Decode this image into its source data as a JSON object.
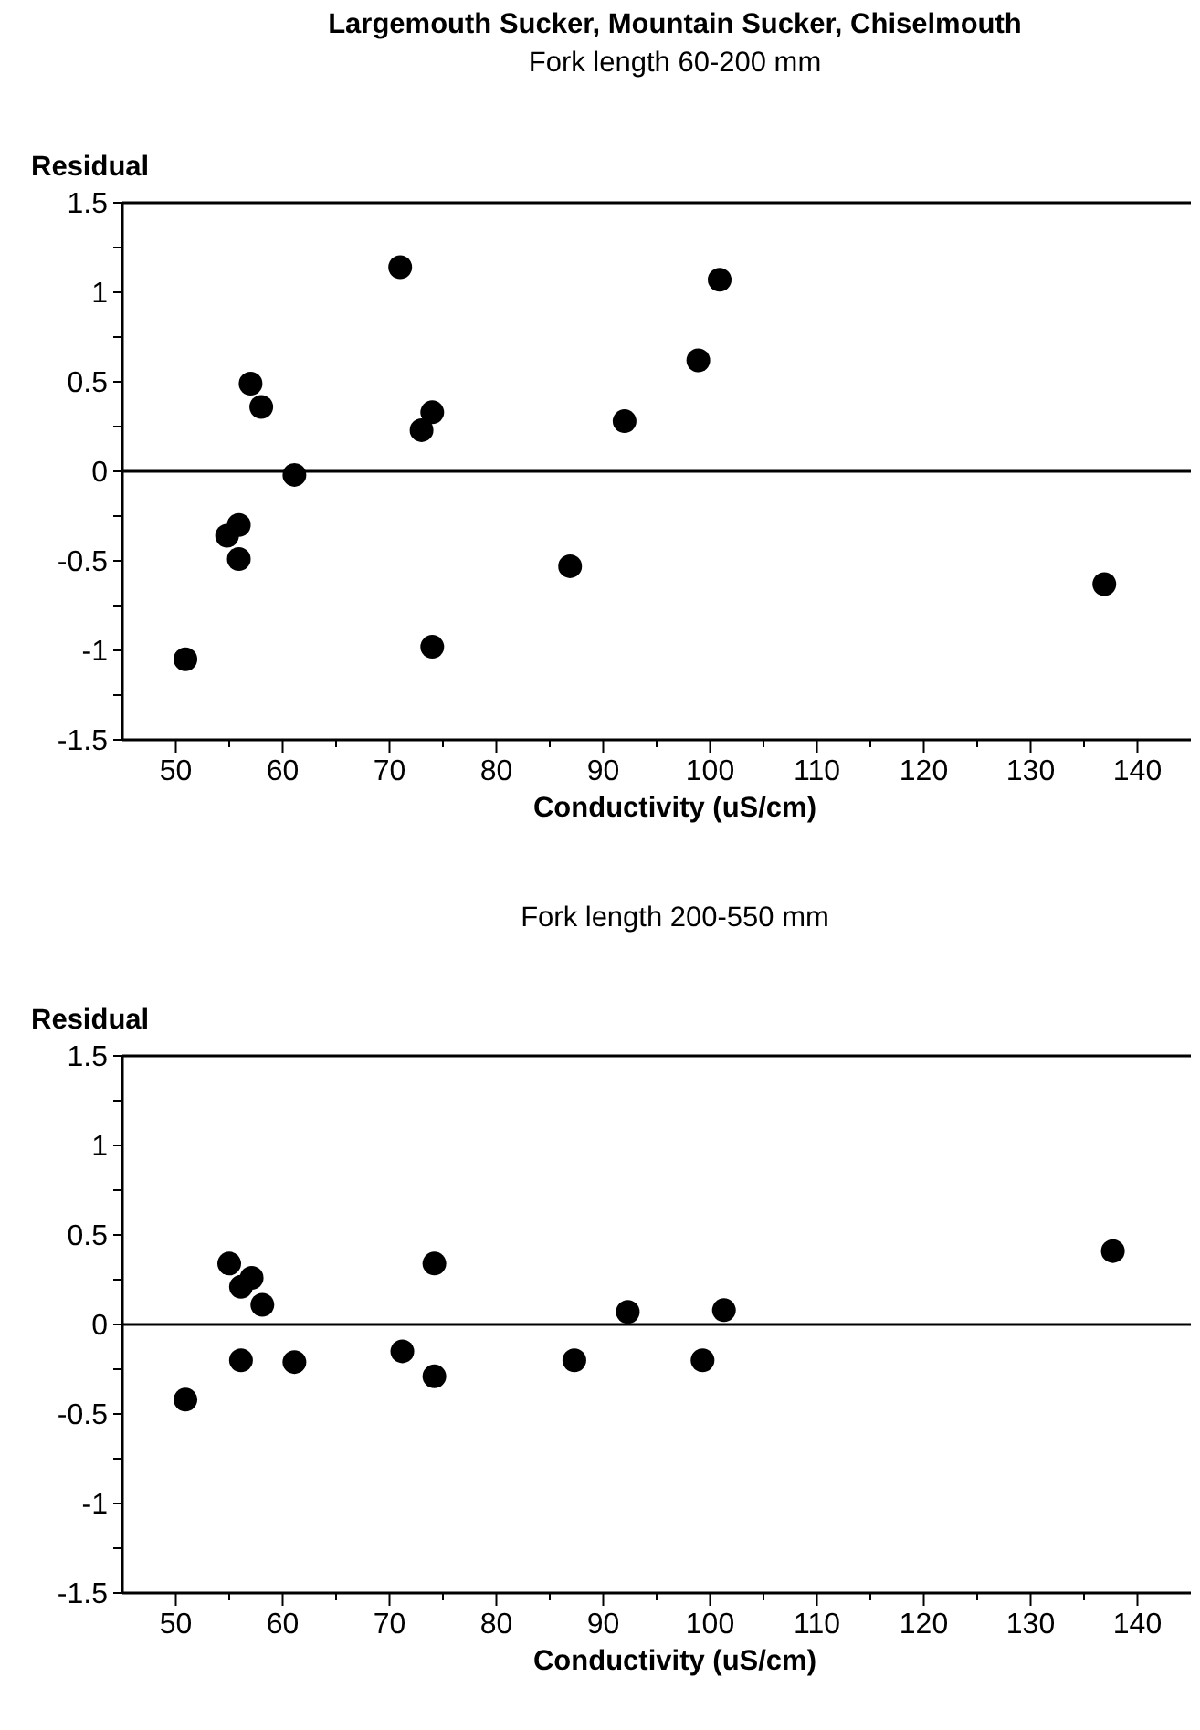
{
  "chart_data": [
    {
      "type": "scatter",
      "title": "Largemouth Sucker, Mountain Sucker, Chiselmouth",
      "subtitle": "Fork length 60-200 mm",
      "xlabel": "Conductivity (uS/cm)",
      "ylabel": "Residual",
      "marker": "circle",
      "grid": false,
      "xlim": [
        45,
        145
      ],
      "ylim": [
        -1.5,
        1.5
      ],
      "xticks": [
        50,
        {
          "value": 55,
          "label": null
        },
        60,
        {
          "value": 65,
          "label": null
        },
        70,
        {
          "value": 75,
          "label": null
        },
        80,
        {
          "value": 85,
          "label": null
        },
        90,
        {
          "value": 95,
          "label": null
        },
        100,
        {
          "value": 105,
          "label": null
        },
        110,
        {
          "value": 115,
          "label": null
        },
        120,
        {
          "value": 125,
          "label": null
        },
        130,
        {
          "value": 135,
          "label": null
        },
        140
      ],
      "yticks": [
        -1.5,
        {
          "value": -1.25,
          "label": null
        },
        -1,
        {
          "value": -0.75,
          "label": null
        },
        -0.5,
        {
          "value": -0.25,
          "label": null
        },
        0,
        {
          "value": 0.25,
          "label": null
        },
        0.5,
        {
          "value": 0.75,
          "label": null
        },
        1,
        {
          "value": 1.25,
          "label": null
        },
        1.5
      ],
      "ref_lines": [
        {
          "axis": "y",
          "value": 0,
          "color": "#000000"
        }
      ],
      "series": [
        {
          "color": "#000000",
          "x": [
            50.9,
            54.8,
            55.9,
            55.9,
            57,
            58,
            61.1,
            71,
            73,
            74,
            74,
            86.9,
            92,
            98.9,
            100.9,
            136.9
          ],
          "values": [
            -1.05,
            -0.36,
            -0.3,
            -0.49,
            0.49,
            0.36,
            -0.02,
            1.14,
            0.23,
            0.33,
            -0.98,
            -0.53,
            0.28,
            0.62,
            1.07,
            -0.63
          ]
        }
      ]
    },
    {
      "type": "scatter",
      "subtitle": "Fork length 200-550 mm",
      "xlabel": "Conductivity (uS/cm)",
      "ylabel": "Residual",
      "marker": "circle",
      "grid": false,
      "xlim": [
        45,
        145
      ],
      "ylim": [
        -1.5,
        1.5
      ],
      "xticks": [
        50,
        {
          "value": 55,
          "label": null
        },
        60,
        {
          "value": 65,
          "label": null
        },
        70,
        {
          "value": 75,
          "label": null
        },
        80,
        {
          "value": 85,
          "label": null
        },
        90,
        {
          "value": 95,
          "label": null
        },
        100,
        {
          "value": 105,
          "label": null
        },
        110,
        {
          "value": 115,
          "label": null
        },
        120,
        {
          "value": 125,
          "label": null
        },
        130,
        {
          "value": 135,
          "label": null
        },
        140
      ],
      "yticks": [
        -1.5,
        {
          "value": -1.25,
          "label": null
        },
        -1,
        {
          "value": -0.75,
          "label": null
        },
        -0.5,
        {
          "value": -0.25,
          "label": null
        },
        0,
        {
          "value": 0.25,
          "label": null
        },
        0.5,
        {
          "value": 0.75,
          "label": null
        },
        1,
        {
          "value": 1.25,
          "label": null
        },
        1.5
      ],
      "ref_lines": [
        {
          "axis": "y",
          "value": 0,
          "color": "#000000"
        }
      ],
      "series": [
        {
          "color": "#000000",
          "x": [
            50.9,
            55,
            56.1,
            57.1,
            58.1,
            56.1,
            61.1,
            71.2,
            74.2,
            74.2,
            87.3,
            92.3,
            99.3,
            101.3,
            137.7
          ],
          "values": [
            -0.42,
            0.34,
            0.21,
            0.26,
            0.11,
            -0.2,
            -0.21,
            -0.15,
            0.34,
            -0.29,
            -0.2,
            0.07,
            -0.2,
            0.08,
            0.41
          ]
        }
      ]
    }
  ]
}
